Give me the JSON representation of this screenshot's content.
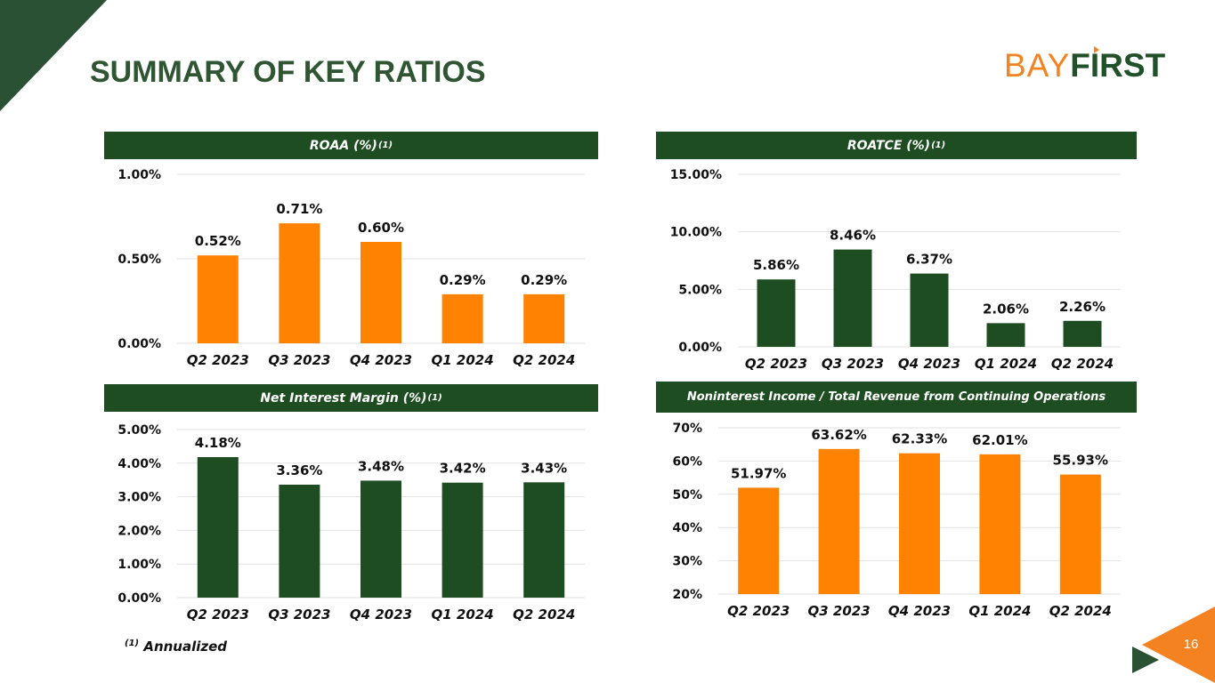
{
  "page": {
    "title": "SUMMARY OF KEY RATIOS",
    "logo": {
      "part1": "BAY",
      "part2": "FIRST"
    },
    "footnote": {
      "marker": "(1)",
      "text": "Annualized"
    },
    "page_number": "16"
  },
  "colors": {
    "green": "#1e4d22",
    "orange": "#ff8200",
    "dark_green": "#2a5134",
    "orange_accent": "#f58220"
  },
  "chart_data": [
    {
      "id": "roaa",
      "type": "bar",
      "title": "ROAA (%)",
      "title_sup": "(1)",
      "color": "#ff8200",
      "categories": [
        "Q2 2023",
        "Q3 2023",
        "Q4 2023",
        "Q1 2024",
        "Q2 2024"
      ],
      "values": [
        0.52,
        0.71,
        0.6,
        0.29,
        0.29
      ],
      "data_labels": [
        "0.52%",
        "0.71%",
        "0.60%",
        "0.29%",
        "0.29%"
      ],
      "ylim": [
        0,
        1.0
      ],
      "yticks": [
        0,
        0.5,
        1.0
      ],
      "ytick_labels": [
        "0.00%",
        "0.50%",
        "1.00%"
      ]
    },
    {
      "id": "roatce",
      "type": "bar",
      "title": "ROATCE (%)",
      "title_sup": "(1)",
      "color": "#1e4d22",
      "categories": [
        "Q2 2023",
        "Q3 2023",
        "Q4 2023",
        "Q1 2024",
        "Q2 2024"
      ],
      "values": [
        5.86,
        8.46,
        6.37,
        2.06,
        2.26
      ],
      "data_labels": [
        "5.86%",
        "8.46%",
        "6.37%",
        "2.06%",
        "2.26%"
      ],
      "ylim": [
        0,
        15
      ],
      "yticks": [
        0,
        5,
        10,
        15
      ],
      "ytick_labels": [
        "0.00%",
        "5.00%",
        "10.00%",
        "15.00%"
      ]
    },
    {
      "id": "nim",
      "type": "bar",
      "title": "Net Interest Margin (%)",
      "title_sup": "(1)",
      "color": "#1e4d22",
      "categories": [
        "Q2 2023",
        "Q3 2023",
        "Q4 2023",
        "Q1 2024",
        "Q2 2024"
      ],
      "values": [
        4.18,
        3.36,
        3.48,
        3.42,
        3.43
      ],
      "data_labels": [
        "4.18%",
        "3.36%",
        "3.48%",
        "3.42%",
        "3.43%"
      ],
      "ylim": [
        0,
        5
      ],
      "yticks": [
        0,
        1,
        2,
        3,
        4,
        5
      ],
      "ytick_labels": [
        "0.00%",
        "1.00%",
        "2.00%",
        "3.00%",
        "4.00%",
        "5.00%"
      ]
    },
    {
      "id": "nonint",
      "type": "bar",
      "title": "Noninterest Income / Total Revenue from Continuing Operations",
      "title_sup": "",
      "color": "#ff8200",
      "categories": [
        "Q2 2023",
        "Q3 2023",
        "Q4 2023",
        "Q1 2024",
        "Q2 2024"
      ],
      "values": [
        51.97,
        63.62,
        62.33,
        62.01,
        55.93
      ],
      "data_labels": [
        "51.97%",
        "63.62%",
        "62.33%",
        "62.01%",
        "55.93%"
      ],
      "ylim": [
        20,
        70
      ],
      "yticks": [
        20,
        30,
        40,
        50,
        60,
        70
      ],
      "ytick_labels": [
        "20%",
        "30%",
        "40%",
        "50%",
        "60%",
        "70%"
      ]
    }
  ]
}
